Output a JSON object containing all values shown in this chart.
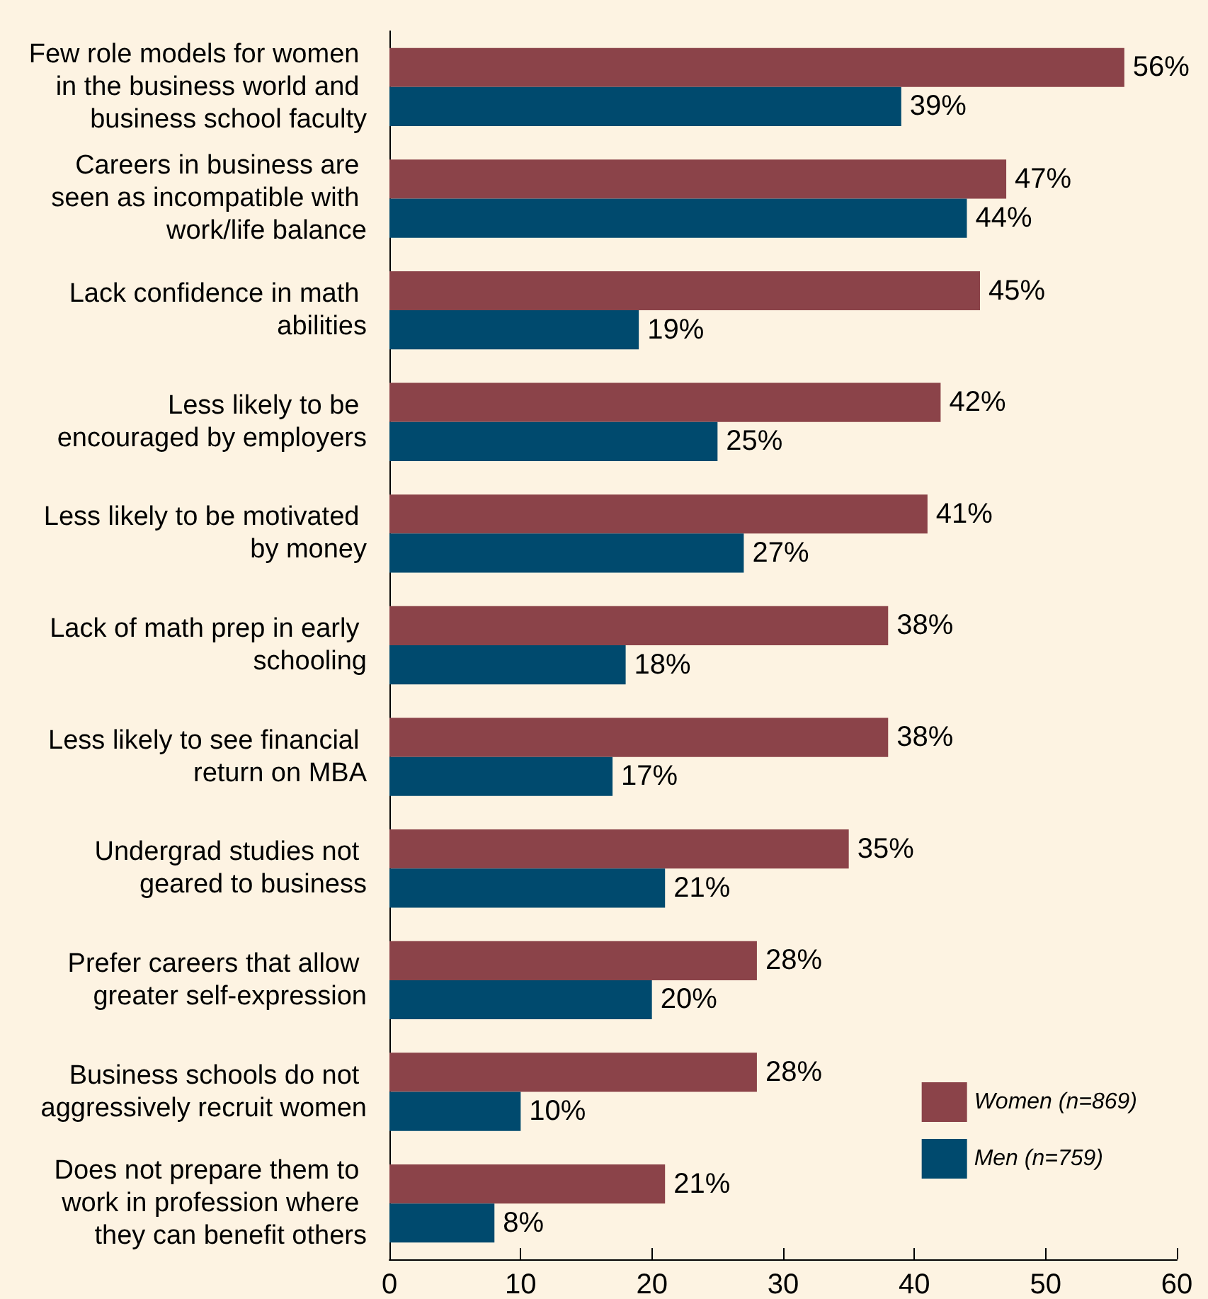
{
  "chart_data": {
    "type": "bar",
    "orientation": "horizontal",
    "categories": [
      "Few role models for women in the business world and business school faculty",
      "Careers in business are seen as incompatible with work/life balance",
      "Lack confidence in math abilities",
      "Less likely to be encouraged by employers",
      "Less likely to be motivated by money",
      "Lack of math prep in early schooling",
      "Less likely to see financial return on MBA",
      "Undergrad studies not geared to business",
      "Prefer careers that allow greater self-expression",
      "Business schools do not aggressively recruit women",
      "Does not prepare them to work in profession where they can benefit others"
    ],
    "series": [
      {
        "name": "Women (n=869)",
        "color": "#8b4349",
        "values": [
          56,
          47,
          45,
          42,
          41,
          38,
          38,
          35,
          28,
          28,
          21
        ],
        "value_labels": [
          "56%",
          "47%",
          "45%",
          "42%",
          "41%",
          "38%",
          "38%",
          "35%",
          "28%",
          "28%",
          "21%"
        ]
      },
      {
        "name": "Men (n=759)",
        "color": "#004a6e",
        "values": [
          39,
          44,
          19,
          25,
          27,
          18,
          17,
          21,
          20,
          10,
          8
        ],
        "value_labels": [
          "39%",
          "44%",
          "19%",
          "25%",
          "27%",
          "18%",
          "17%",
          "21%",
          "20%",
          "10%",
          "8%"
        ]
      }
    ],
    "xlim": [
      0,
      60
    ],
    "xticks": [
      0,
      10,
      20,
      30,
      40,
      50,
      60
    ],
    "grid": false,
    "legend": "bottom right"
  }
}
